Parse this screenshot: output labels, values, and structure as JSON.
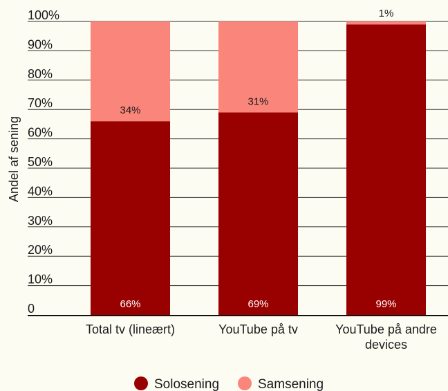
{
  "colors": {
    "background": "#fdfcf3",
    "solo": "#990000",
    "sam": "#fa857a",
    "grid": "#2b2b2b",
    "text": "#1a1a1a",
    "bar_label": "#ffffff"
  },
  "chart_data": {
    "type": "bar",
    "stacked": true,
    "categories": [
      [
        "Total tv (lineært)"
      ],
      [
        "YouTube på tv"
      ],
      [
        "YouTube på andre",
        "devices"
      ]
    ],
    "series": [
      {
        "name": "Solosening",
        "values": [
          66,
          69,
          99
        ],
        "labels": [
          "66%",
          "69%",
          "99%"
        ]
      },
      {
        "name": "Samsening",
        "values": [
          34,
          31,
          1
        ],
        "labels": [
          "34%",
          "31%",
          "1%"
        ]
      }
    ],
    "ylabel": "Andel af sening",
    "ylim": [
      0,
      100
    ],
    "yticks": [
      0,
      10,
      20,
      30,
      40,
      50,
      60,
      70,
      80,
      90,
      100
    ],
    "ytick_labels": [
      "0",
      "10%",
      "20%",
      "30%",
      "40%",
      "50%",
      "60%",
      "70%",
      "80%",
      "90%",
      "100%"
    ],
    "grid": true,
    "legend_position": "bottom"
  }
}
